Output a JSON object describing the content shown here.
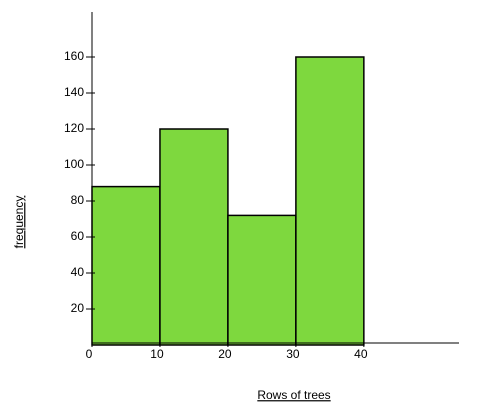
{
  "chart_data": {
    "type": "histogram",
    "x_label": "Rows of trees",
    "y_label": "frequency",
    "bins": [
      0,
      10,
      20,
      30,
      40
    ],
    "values": [
      88,
      120,
      72,
      160
    ],
    "color": "#7ed83e",
    "xlim": [
      0,
      54
    ],
    "ylim": [
      0,
      185
    ],
    "xticks": [
      0,
      10,
      20,
      30,
      40
    ],
    "yticks": [
      20,
      40,
      60,
      80,
      100,
      120,
      140,
      160
    ]
  }
}
